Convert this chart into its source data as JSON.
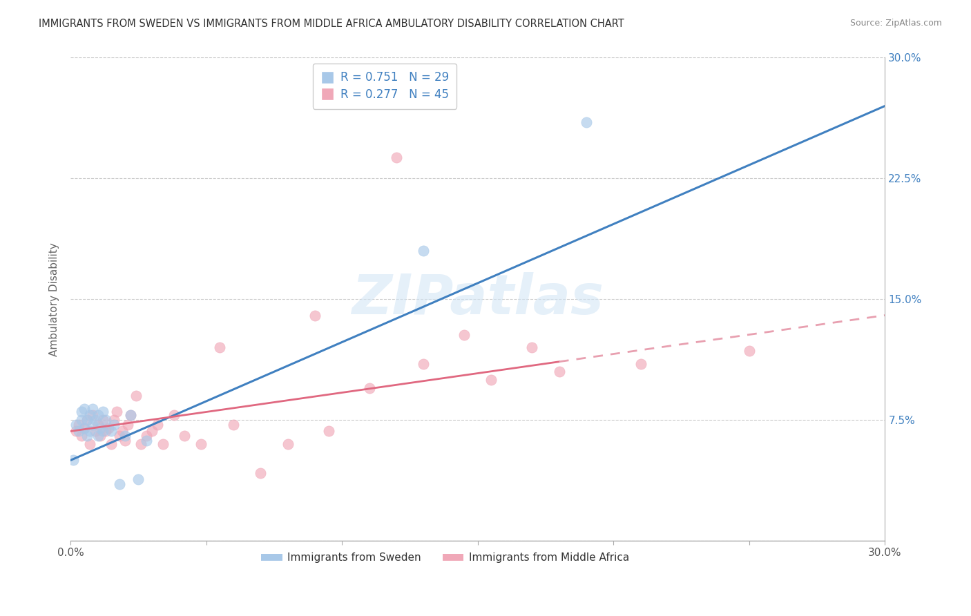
{
  "title": "IMMIGRANTS FROM SWEDEN VS IMMIGRANTS FROM MIDDLE AFRICA AMBULATORY DISABILITY CORRELATION CHART",
  "source": "Source: ZipAtlas.com",
  "ylabel": "Ambulatory Disability",
  "xmin": 0.0,
  "xmax": 0.3,
  "ymin": 0.0,
  "ymax": 0.3,
  "yticks": [
    0.0,
    0.075,
    0.15,
    0.225,
    0.3
  ],
  "ytick_labels_right": [
    "",
    "7.5%",
    "15.0%",
    "22.5%",
    "30.0%"
  ],
  "xticks": [
    0.0,
    0.05,
    0.1,
    0.15,
    0.2,
    0.25,
    0.3
  ],
  "xtick_labels": [
    "0.0%",
    "",
    "",
    "",
    "",
    "",
    "30.0%"
  ],
  "series1_label": "Immigrants from Sweden",
  "series2_label": "Immigrants from Middle Africa",
  "R1": 0.751,
  "N1": 29,
  "R2": 0.277,
  "N2": 45,
  "color1": "#a8c8e8",
  "color2": "#f0a8b8",
  "line1_color": "#4080c0",
  "line2_color": "#e06880",
  "line2_dash_color": "#e8a0b0",
  "watermark": "ZIPatlas",
  "line1_x0": 0.0,
  "line1_y0": 0.05,
  "line1_x1": 0.3,
  "line1_y1": 0.27,
  "line2_x0": 0.0,
  "line2_y0": 0.068,
  "line2_x1": 0.3,
  "line2_y1": 0.14,
  "line2_solid_end": 0.18,
  "scatter1_x": [
    0.001,
    0.002,
    0.003,
    0.004,
    0.004,
    0.005,
    0.005,
    0.006,
    0.006,
    0.007,
    0.007,
    0.008,
    0.008,
    0.009,
    0.01,
    0.01,
    0.011,
    0.012,
    0.012,
    0.013,
    0.015,
    0.016,
    0.02,
    0.022,
    0.028,
    0.13,
    0.19,
    0.025,
    0.018
  ],
  "scatter1_y": [
    0.05,
    0.072,
    0.068,
    0.08,
    0.075,
    0.082,
    0.07,
    0.075,
    0.065,
    0.078,
    0.068,
    0.082,
    0.072,
    0.075,
    0.078,
    0.065,
    0.07,
    0.08,
    0.068,
    0.075,
    0.068,
    0.072,
    0.065,
    0.078,
    0.062,
    0.18,
    0.26,
    0.038,
    0.035
  ],
  "scatter2_x": [
    0.002,
    0.003,
    0.004,
    0.005,
    0.006,
    0.007,
    0.008,
    0.009,
    0.01,
    0.011,
    0.012,
    0.013,
    0.014,
    0.015,
    0.016,
    0.017,
    0.018,
    0.019,
    0.02,
    0.021,
    0.022,
    0.024,
    0.026,
    0.028,
    0.03,
    0.032,
    0.034,
    0.038,
    0.042,
    0.048,
    0.055,
    0.06,
    0.07,
    0.08,
    0.09,
    0.095,
    0.11,
    0.12,
    0.13,
    0.145,
    0.155,
    0.17,
    0.18,
    0.21,
    0.25
  ],
  "scatter2_y": [
    0.068,
    0.072,
    0.065,
    0.07,
    0.075,
    0.06,
    0.078,
    0.068,
    0.072,
    0.065,
    0.075,
    0.068,
    0.07,
    0.06,
    0.075,
    0.08,
    0.065,
    0.068,
    0.062,
    0.072,
    0.078,
    0.09,
    0.06,
    0.065,
    0.068,
    0.072,
    0.06,
    0.078,
    0.065,
    0.06,
    0.12,
    0.072,
    0.042,
    0.06,
    0.14,
    0.068,
    0.095,
    0.238,
    0.11,
    0.128,
    0.1,
    0.12,
    0.105,
    0.11,
    0.118
  ]
}
